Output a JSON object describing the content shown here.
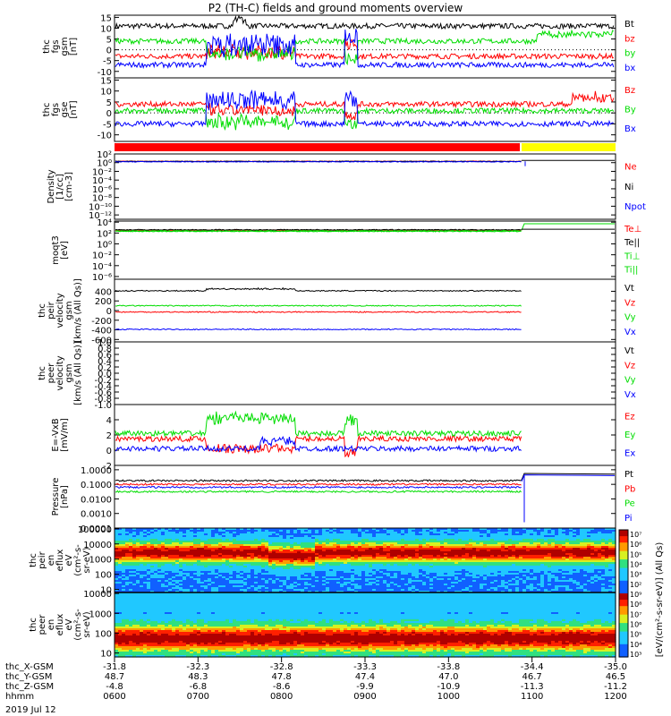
{
  "title": "P2 (TH-C) fields and ground moments overview",
  "footer_date": "2019 Jul 12",
  "colors": {
    "black": "#000000",
    "red": "#ff0000",
    "green": "#00dd00",
    "blue": "#0000ff",
    "yellow": "#ffff00"
  },
  "chart_data": [
    {
      "type": "line",
      "panel": "fgs_gsm",
      "ylabel": [
        "thc",
        "fgs",
        "gsm",
        "[nT]"
      ],
      "yticks": [
        "15",
        "10",
        "5",
        "0",
        "-5",
        "-10"
      ],
      "ylim": [
        -13,
        16
      ],
      "legend": [
        "Bt",
        "bz",
        "by",
        "bx"
      ],
      "series": [
        {
          "name": "Bt",
          "typical": 11
        },
        {
          "name": "bz",
          "typical": -3
        },
        {
          "name": "by",
          "typical": 4
        },
        {
          "name": "bx",
          "typical": -7
        }
      ]
    },
    {
      "type": "line",
      "panel": "fgs_gse",
      "ylabel": [
        "thc",
        "fgs",
        "gse",
        "[nT]"
      ],
      "yticks": [
        "15",
        "10",
        "5",
        "0",
        "-5",
        "-10"
      ],
      "ylim": [
        -13,
        16
      ],
      "legend": [
        "Bz",
        "By",
        "Bx"
      ],
      "series": [
        {
          "name": "Bz",
          "typical": 4
        },
        {
          "name": "By",
          "typical": 1
        },
        {
          "name": "Bx",
          "typical": -5
        }
      ]
    },
    {
      "type": "bar",
      "panel": "mode_bar",
      "segments": [
        {
          "from": "0600",
          "to": "1100",
          "color": "red"
        },
        {
          "from": "1100",
          "to": "1200",
          "color": "yellow"
        }
      ]
    },
    {
      "type": "line",
      "panel": "density",
      "ylabel": [
        "Density",
        "[1/cc]",
        "[cm-3]"
      ],
      "yticks": [
        "10²",
        "10⁰",
        "10⁻²",
        "10⁻⁴",
        "10⁻⁶",
        "10⁻⁸",
        "10⁻¹⁰",
        "10⁻¹²"
      ],
      "ylim": [
        -13,
        2
      ],
      "scale": "log",
      "legend": [
        "Ne",
        "Ni",
        "Npot"
      ],
      "series": [
        {
          "name": "Ne",
          "log_typical": 0.3
        },
        {
          "name": "Ni",
          "log_typical": 0.3
        },
        {
          "name": "Npot",
          "log_typical": 0.2
        }
      ]
    },
    {
      "type": "line",
      "panel": "temperature",
      "ylabel": [
        "moqt3",
        "[eV]"
      ],
      "yticks": [
        "10⁴",
        "10²",
        "10⁰",
        "10⁻²",
        "10⁻⁴",
        "10⁻⁶"
      ],
      "ylim": [
        -6.5,
        4.2
      ],
      "scale": "log",
      "legend": [
        "Te⊥",
        "Te||",
        "Ti⊥",
        "Ti||"
      ],
      "series": [
        {
          "name": "Te⊥",
          "log_typical": 2.5
        },
        {
          "name": "Te||",
          "log_typical": 2.6
        },
        {
          "name": "Ti⊥",
          "log_typical": 2.3
        },
        {
          "name": "Ti||",
          "log_typical": 2.4
        }
      ]
    },
    {
      "type": "line",
      "panel": "peir_velocity",
      "ylabel": [
        "thc",
        "peir",
        "velocity",
        "gsm",
        "[km/s (All Qs)]"
      ],
      "yticks": [
        "400",
        "200",
        "0",
        "-200",
        "-400",
        "-600"
      ],
      "ylim": [
        -650,
        650
      ],
      "legend": [
        "Vt",
        "Vz",
        "Vy",
        "Vx"
      ],
      "series": [
        {
          "name": "Vt",
          "typical": 410
        },
        {
          "name": "Vz",
          "typical": -30
        },
        {
          "name": "Vy",
          "typical": 100
        },
        {
          "name": "Vx",
          "typical": -390
        }
      ]
    },
    {
      "type": "line",
      "panel": "peer_velocity",
      "ylabel": [
        "thc",
        "peer",
        "velocity",
        "gsm",
        "[km/s (All Qs)]"
      ],
      "yticks": [
        "1.0",
        "0.8",
        "0.6",
        "0.4",
        "0.2",
        "0.0",
        "-0.2",
        "-0.4",
        "-0.6",
        "-0.8",
        "-1.0"
      ],
      "ylim": [
        -1,
        1
      ],
      "legend": [
        "Vt",
        "Vz",
        "Vy",
        "Vx"
      ],
      "series": []
    },
    {
      "type": "line",
      "panel": "efield",
      "ylabel": [
        "E=-VxB",
        "[mV/m]"
      ],
      "yticks": [
        "4",
        "2",
        "0",
        "-2"
      ],
      "ylim": [
        -2,
        6
      ],
      "legend": [
        "Ez",
        "Ey",
        "Ex"
      ],
      "series": [
        {
          "name": "Ez",
          "typical": 1.5
        },
        {
          "name": "Ey",
          "typical": 2.2
        },
        {
          "name": "Ex",
          "typical": 0.2
        }
      ]
    },
    {
      "type": "line",
      "panel": "pressure",
      "ylabel": [
        "Pressure",
        "[nPa]"
      ],
      "yticks": [
        "1.0000",
        "0.1000",
        "0.0100",
        "0.0010",
        "0.0001"
      ],
      "ylim": [
        -4,
        0.3
      ],
      "scale": "log",
      "legend": [
        "Pt",
        "Pb",
        "Pe",
        "Pi"
      ],
      "series": [
        {
          "name": "Pt",
          "log_typical": -0.75
        },
        {
          "name": "Pb",
          "log_typical": -1
        },
        {
          "name": "Pe",
          "log_typical": -1.5
        },
        {
          "name": "Pi",
          "log_typical": -1.2
        }
      ]
    },
    {
      "type": "heatmap",
      "panel": "peir_spec",
      "ylabel": [
        "thc",
        "peir",
        "en",
        "eflux",
        "eV",
        "(cm²-s-",
        "sr-eV)"
      ],
      "yticks": [
        "100000",
        "10000",
        "1000",
        "100",
        "10"
      ],
      "scale": "log"
    },
    {
      "type": "heatmap",
      "panel": "peer_spec",
      "ylabel": [
        "thc",
        "peer",
        "en",
        "eflux",
        "eV",
        "(cm²-s-",
        "sr-eV)"
      ],
      "yticks": [
        "10000",
        "1000",
        "100",
        "10"
      ],
      "scale": "log"
    }
  ],
  "colorbar": {
    "ticks": [
      "10⁷",
      "10⁶",
      "10⁵",
      "10⁴",
      "10³",
      "10²",
      "10⁹",
      "10⁸",
      "10⁷",
      "10⁶",
      "10⁵",
      "10⁴",
      "10³"
    ],
    "label": "[eV/(cm²-s-sr-eV)] (All Qs)"
  },
  "x_axis": {
    "row_labels": [
      "thc_X-GSM",
      "thc_Y-GSM",
      "thc_Z-GSM",
      "hhmm"
    ],
    "ticks": [
      {
        "x": "-31.8",
        "y": "48.7",
        "z": "-4.8",
        "t": "0600"
      },
      {
        "x": "-32.3",
        "y": "48.3",
        "z": "-6.8",
        "t": "0700"
      },
      {
        "x": "-32.8",
        "y": "47.8",
        "z": "-8.6",
        "t": "0800"
      },
      {
        "x": "-33.3",
        "y": "47.4",
        "z": "-9.9",
        "t": "0900"
      },
      {
        "x": "-33.8",
        "y": "47.0",
        "z": "-10.9",
        "t": "1000"
      },
      {
        "x": "-34.4",
        "y": "46.7",
        "z": "-11.3",
        "t": "1100"
      },
      {
        "x": "-35.0",
        "y": "46.5",
        "z": "-11.2",
        "t": "1200"
      }
    ]
  }
}
